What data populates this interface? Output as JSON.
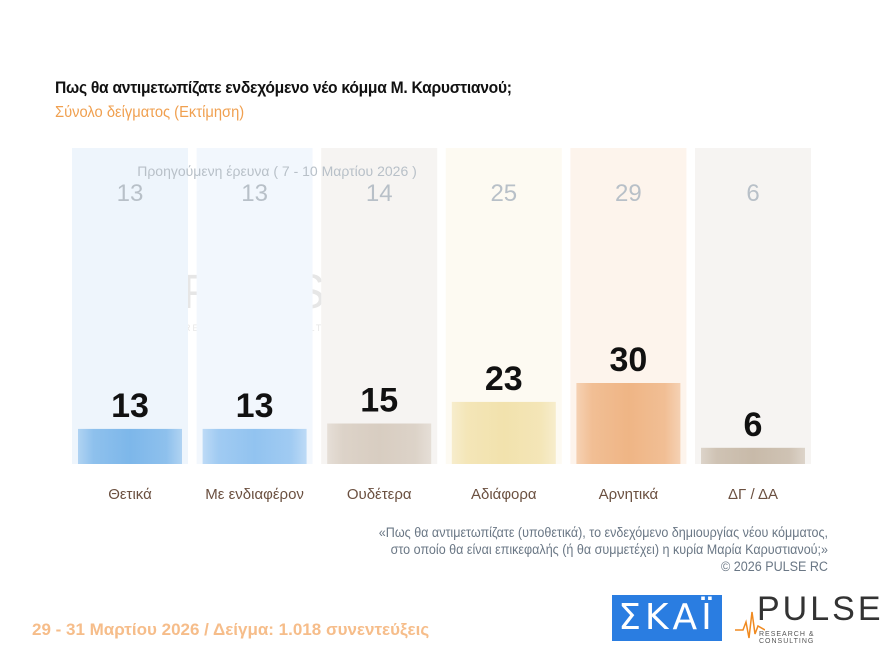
{
  "title": "Πως θα αντιμετωπίζατε ενδεχόμενο νέο κόμμα Μ. Καρυστιανού;",
  "subtitle": "Σύνολο δείγματος  (Εκτίμηση)",
  "note_line1": "«Πως θα αντιμετωπίζατε (υποθετικά), το ενδεχόμενο δημιουργίας νέου κόμματος,",
  "note_line2": "στο οποίο θα είναι επικεφαλής (ή θα συμμετέχει) η κυρία Μαρία Καρυστιανού;»",
  "copyright": "©  2026  PULSE RC",
  "footer": "29 - 31  Μαρτίου 2026  /  Δείγμα:  1.018 συνεντεύξεις",
  "logos": {
    "skai": "ΣΚΑΪ",
    "pulse": "PULSE",
    "pulse_sub": "RESEARCH & CONSULTING"
  },
  "chart_data": {
    "type": "bar",
    "previous_label": "Προηγούμενη έρευνα ( 7 - 10 Μαρτίου 2026 )",
    "categories": [
      "Θετικά",
      "Με ενδιαφέρον",
      "Ουδέτερα",
      "Αδιάφορα",
      "Αρνητικά",
      "ΔΓ / ΔΑ"
    ],
    "values": [
      13,
      13,
      15,
      23,
      30,
      6
    ],
    "previous_values": [
      13,
      13,
      14,
      25,
      29,
      6
    ],
    "colors": [
      "#7db7ea",
      "#92c3f0",
      "#d8cdc1",
      "#f2e2ad",
      "#efb585",
      "#c8baa9"
    ],
    "column_bg": [
      "#eef5fc",
      "#f2f7fd",
      "#f6f4f2",
      "#fdfaf2",
      "#fdf4ec",
      "#f6f4f2"
    ],
    "ylim": [
      0,
      100
    ]
  }
}
